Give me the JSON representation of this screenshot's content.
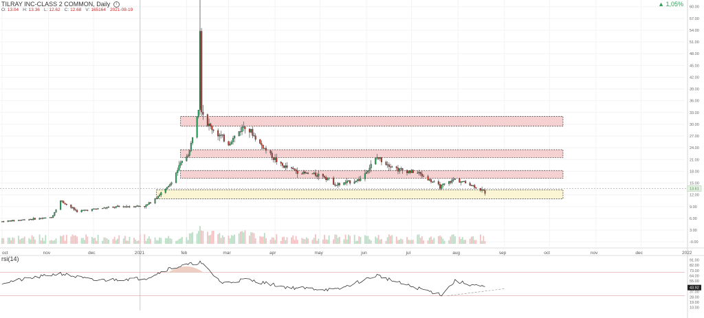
{
  "header": {
    "title": "TILRAY INC-CLASS 2 COMMON, Daily",
    "info_icon": "info-icon",
    "ohlc": [
      {
        "key": "O:",
        "val": "13.04"
      },
      {
        "key": "H:",
        "val": "13.36"
      },
      {
        "key": "L:",
        "val": "12.62"
      },
      {
        "key": "C:",
        "val": "12.68"
      },
      {
        "key": "V:",
        "val": "165164"
      },
      {
        "key": "",
        "val": "2021-08-19"
      }
    ],
    "change": "▲ 1,05%"
  },
  "rsi": {
    "label": "rsi(14)",
    "current": "43.92",
    "ticks": [
      "91.00",
      "82.00",
      "73.00",
      "64.00",
      "55.00",
      "46.00",
      "37.00",
      "28.00",
      "19.00",
      "10.00"
    ]
  },
  "price_tag": "13.61",
  "colors": {
    "up": "#26a65b",
    "down": "#c0392b",
    "resistance": "#f4c6c6",
    "support": "#fbf3c8",
    "volume_up": "#b9dcc4",
    "volume_down": "#f1c1c1"
  },
  "chart_data": {
    "type": "candlestick",
    "title": "TILRAY INC-CLASS 2 COMMON, Daily",
    "y_ticks": [
      "60.00",
      "57.00",
      "54.00",
      "51.00",
      "48.00",
      "45.00",
      "42.00",
      "39.00",
      "36.00",
      "33.00",
      "30.00",
      "27.00",
      "24.00",
      "21.00",
      "18.00",
      "15.00",
      "12.00",
      "9.00",
      "6.00",
      "3.00",
      "-0.00"
    ],
    "ylim": [
      -0.5,
      61
    ],
    "x_ticks": [
      "oct",
      "nov",
      "dec",
      "2021",
      "feb",
      "mar",
      "apr",
      "may",
      "jun",
      "jul",
      "aug",
      "sep",
      "oct",
      "nov",
      "dec",
      "2022"
    ],
    "zones": [
      {
        "kind": "resistance",
        "low": 29.5,
        "high": 32.0
      },
      {
        "kind": "resistance",
        "low": 21.5,
        "high": 23.5
      },
      {
        "kind": "resistance",
        "low": 16.2,
        "high": 18.2
      },
      {
        "kind": "support",
        "low": 11.0,
        "high": 13.3
      }
    ],
    "close_series": [
      {
        "date": "2020-10-01",
        "close": 5.2
      },
      {
        "date": "2020-10-20",
        "close": 5.8
      },
      {
        "date": "2020-11-03",
        "close": 6.2
      },
      {
        "date": "2020-11-09",
        "close": 10.5
      },
      {
        "date": "2020-11-20",
        "close": 7.8
      },
      {
        "date": "2020-12-07",
        "close": 8.6
      },
      {
        "date": "2020-12-20",
        "close": 9.0
      },
      {
        "date": "2021-01-05",
        "close": 9.2
      },
      {
        "date": "2021-01-20",
        "close": 14.0
      },
      {
        "date": "2021-01-28",
        "close": 19.8
      },
      {
        "date": "2021-02-03",
        "close": 23.0
      },
      {
        "date": "2021-02-09",
        "close": 35.0
      },
      {
        "date": "2021-02-10",
        "close": 55.0
      },
      {
        "date": "2021-02-11",
        "close": 34.0
      },
      {
        "date": "2021-02-15",
        "close": 30.0
      },
      {
        "date": "2021-03-01",
        "close": 25.0
      },
      {
        "date": "2021-03-12",
        "close": 30.0
      },
      {
        "date": "2021-03-22",
        "close": 25.0
      },
      {
        "date": "2021-04-05",
        "close": 19.5
      },
      {
        "date": "2021-04-20",
        "close": 17.5
      },
      {
        "date": "2021-05-03",
        "close": 17.0
      },
      {
        "date": "2021-05-12",
        "close": 14.5
      },
      {
        "date": "2021-05-28",
        "close": 16.0
      },
      {
        "date": "2021-06-08",
        "close": 21.5
      },
      {
        "date": "2021-06-22",
        "close": 18.5
      },
      {
        "date": "2021-07-06",
        "close": 17.5
      },
      {
        "date": "2021-07-20",
        "close": 14.0
      },
      {
        "date": "2021-07-30",
        "close": 16.0
      },
      {
        "date": "2021-08-10",
        "close": 14.5
      },
      {
        "date": "2021-08-19",
        "close": 12.68
      }
    ],
    "rsi_series": [
      {
        "date": "2020-10-01",
        "value": 52
      },
      {
        "date": "2020-11-09",
        "value": 68
      },
      {
        "date": "2020-12-01",
        "value": 56
      },
      {
        "date": "2021-01-05",
        "value": 60
      },
      {
        "date": "2021-01-20",
        "value": 76
      },
      {
        "date": "2021-02-10",
        "value": 87
      },
      {
        "date": "2021-02-25",
        "value": 51
      },
      {
        "date": "2021-03-12",
        "value": 58
      },
      {
        "date": "2021-04-10",
        "value": 44
      },
      {
        "date": "2021-05-12",
        "value": 40
      },
      {
        "date": "2021-06-08",
        "value": 65
      },
      {
        "date": "2021-06-25",
        "value": 50
      },
      {
        "date": "2021-07-21",
        "value": 32
      },
      {
        "date": "2021-07-30",
        "value": 55
      },
      {
        "date": "2021-08-19",
        "value": 43.92
      }
    ],
    "rsi_levels": [
      70,
      30
    ]
  }
}
